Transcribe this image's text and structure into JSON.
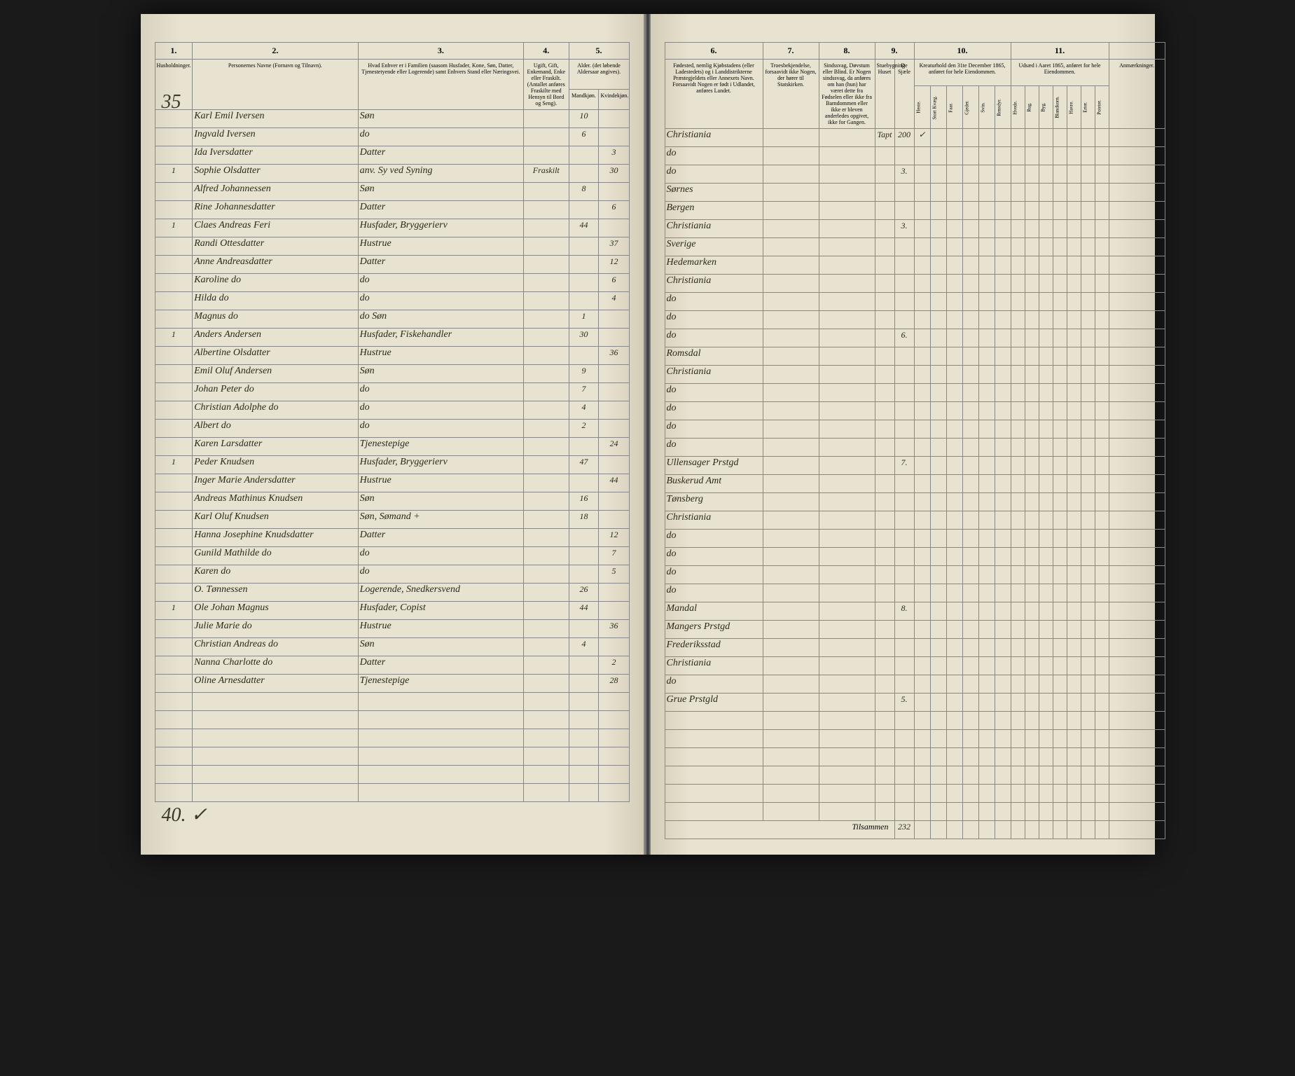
{
  "page_number_top": "35",
  "page_number_bottom": "40.",
  "checkmark": "✓",
  "tilsammen_label": "Tilsammen",
  "tilsammen_value": "232",
  "left_headers": {
    "col1_num": "1.",
    "col2_num": "2.",
    "col3_num": "3.",
    "col4_num": "4.",
    "col5_num": "5.",
    "col1": "Husholdninger.",
    "col2": "Personernes Navne (Fornavn og Tilnavn).",
    "col3": "Hvad Enhver er i Familien (saasom Husfader, Kone, Søn, Datter, Tjenestetyende eller Logerende) samt Enhvers Stand eller Næringsvei.",
    "col4": "Ugift, Gift, Enkemand, Enke eller Fraskilt. (Antallet anføres Fraskilte med Hensyn til Bord og Seng).",
    "col5": "Alder. (det løbende Aldersaar angives).",
    "col5a": "Mandkjøn.",
    "col5b": "Kvindekjøn."
  },
  "right_headers": {
    "col6_num": "6.",
    "col7_num": "7.",
    "col8_num": "8.",
    "col9_num": "9.",
    "col10_num": "10.",
    "col11_num": "11.",
    "col6": "Fødested, nemlig Kjøbstadens (eller Ladestedets) og i Landdistrikterne Præstegjeldets eller Annexets Navn. Forsaavidt Nogen er født i Udlandet, anføres Landet.",
    "col7": "Troesbekjendelse, forsaavidt ikke Nogen, der hører til Statskirken.",
    "col8": "Sindssvag, Døvstum eller Blind. Er Nogen sindssvag, da anføres om han (hun) har været dette fra Fødselen eller ikke fra Barndommen eller ikke er bleven anderledes opgivet, ikke for Gangen.",
    "col9a": "Stuebygning Huset",
    "col9b": "De Sjæle",
    "col10": "Kreaturhold den 31te December 1865, anføret for hele Eiendommen.",
    "col10_sub": [
      "Heste.",
      "Stort Kvæg.",
      "Faar.",
      "Gjeder.",
      "Svin.",
      "Rensdyr."
    ],
    "col11": "Udsæd i Aaret 1865, anføret for hele Eiendommen.",
    "col11_sub": [
      "Hvede.",
      "Rug.",
      "Byg.",
      "Blandkorn.",
      "Havre.",
      "Erter.",
      "Poteter."
    ],
    "col12": "Anmærkninger."
  },
  "rows": [
    {
      "hh": "",
      "name": "Karl Emil Iversen",
      "rel": "Søn",
      "status": "",
      "m": "10",
      "f": "",
      "birthplace": "Christiania",
      "faith": "",
      "cond": "",
      "c9a": "Tapt",
      "c9b": "200",
      "c10": [
        "✓",
        "",
        "",
        "",
        "",
        ""
      ],
      "c11": [
        "",
        "",
        "",
        "",
        "",
        "",
        ""
      ]
    },
    {
      "hh": "",
      "name": "Ingvald Iversen",
      "rel": "do",
      "status": "",
      "m": "6",
      "f": "",
      "birthplace": "do",
      "faith": "",
      "cond": "",
      "c9a": "",
      "c9b": "",
      "c10": [
        "",
        "",
        "",
        "",
        "",
        ""
      ],
      "c11": [
        "",
        "",
        "",
        "",
        "",
        "",
        ""
      ]
    },
    {
      "hh": "",
      "name": "Ida Iversdatter",
      "rel": "Datter",
      "status": "",
      "m": "",
      "f": "3",
      "birthplace": "do",
      "faith": "",
      "cond": "",
      "c9a": "",
      "c9b": "3.",
      "c10": [
        "",
        "",
        "",
        "",
        "",
        ""
      ],
      "c11": [
        "",
        "",
        "",
        "",
        "",
        "",
        ""
      ]
    },
    {
      "hh": "1",
      "name": "Sophie Olsdatter",
      "rel": "anv. Sy ved Syning",
      "status": "Fraskilt",
      "m": "",
      "f": "30",
      "birthplace": "Sørnes",
      "faith": "",
      "cond": "",
      "c9a": "",
      "c9b": "",
      "c10": [
        "",
        "",
        "",
        "",
        "",
        ""
      ],
      "c11": [
        "",
        "",
        "",
        "",
        "",
        "",
        ""
      ]
    },
    {
      "hh": "",
      "name": "Alfred Johannessen",
      "rel": "Søn",
      "status": "",
      "m": "8",
      "f": "",
      "birthplace": "Bergen",
      "faith": "",
      "cond": "",
      "c9a": "",
      "c9b": "",
      "c10": [
        "",
        "",
        "",
        "",
        "",
        ""
      ],
      "c11": [
        "",
        "",
        "",
        "",
        "",
        "",
        ""
      ]
    },
    {
      "hh": "",
      "name": "Rine Johannesdatter",
      "rel": "Datter",
      "status": "",
      "m": "",
      "f": "6",
      "birthplace": "Christiania",
      "faith": "",
      "cond": "",
      "c9a": "",
      "c9b": "3.",
      "c10": [
        "",
        "",
        "",
        "",
        "",
        ""
      ],
      "c11": [
        "",
        "",
        "",
        "",
        "",
        "",
        ""
      ]
    },
    {
      "hh": "1",
      "name": "Claes Andreas Feri",
      "rel": "Husfader, Bryggerierv",
      "status": "",
      "m": "44",
      "f": "",
      "birthplace": "Sverige",
      "faith": "",
      "cond": "",
      "c9a": "",
      "c9b": "",
      "c10": [
        "",
        "",
        "",
        "",
        "",
        ""
      ],
      "c11": [
        "",
        "",
        "",
        "",
        "",
        "",
        ""
      ]
    },
    {
      "hh": "",
      "name": "Randi Ottesdatter",
      "rel": "Hustrue",
      "status": "",
      "m": "",
      "f": "37",
      "birthplace": "Hedemarken",
      "faith": "",
      "cond": "",
      "c9a": "",
      "c9b": "",
      "c10": [
        "",
        "",
        "",
        "",
        "",
        ""
      ],
      "c11": [
        "",
        "",
        "",
        "",
        "",
        "",
        ""
      ]
    },
    {
      "hh": "",
      "name": "Anne Andreasdatter",
      "rel": "Datter",
      "status": "",
      "m": "",
      "f": "12",
      "birthplace": "Christiania",
      "faith": "",
      "cond": "",
      "c9a": "",
      "c9b": "",
      "c10": [
        "",
        "",
        "",
        "",
        "",
        ""
      ],
      "c11": [
        "",
        "",
        "",
        "",
        "",
        "",
        ""
      ]
    },
    {
      "hh": "",
      "name": "Karoline   do",
      "rel": "do",
      "status": "",
      "m": "",
      "f": "6",
      "birthplace": "do",
      "faith": "",
      "cond": "",
      "c9a": "",
      "c9b": "",
      "c10": [
        "",
        "",
        "",
        "",
        "",
        ""
      ],
      "c11": [
        "",
        "",
        "",
        "",
        "",
        "",
        ""
      ]
    },
    {
      "hh": "",
      "name": "Hilda   do",
      "rel": "do",
      "status": "",
      "m": "",
      "f": "4",
      "birthplace": "do",
      "faith": "",
      "cond": "",
      "c9a": "",
      "c9b": "",
      "c10": [
        "",
        "",
        "",
        "",
        "",
        ""
      ],
      "c11": [
        "",
        "",
        "",
        "",
        "",
        "",
        ""
      ]
    },
    {
      "hh": "",
      "name": "Magnus   do",
      "rel": "do  Søn",
      "status": "",
      "m": "1",
      "f": "",
      "birthplace": "do",
      "faith": "",
      "cond": "",
      "c9a": "",
      "c9b": "6.",
      "c10": [
        "",
        "",
        "",
        "",
        "",
        ""
      ],
      "c11": [
        "",
        "",
        "",
        "",
        "",
        "",
        ""
      ]
    },
    {
      "hh": "1",
      "name": "Anders Andersen",
      "rel": "Husfader, Fiskehandler",
      "status": "",
      "m": "30",
      "f": "",
      "birthplace": "Romsdal",
      "faith": "",
      "cond": "",
      "c9a": "",
      "c9b": "",
      "c10": [
        "",
        "",
        "",
        "",
        "",
        ""
      ],
      "c11": [
        "",
        "",
        "",
        "",
        "",
        "",
        ""
      ]
    },
    {
      "hh": "",
      "name": "Albertine Olsdatter",
      "rel": "Hustrue",
      "status": "",
      "m": "",
      "f": "36",
      "birthplace": "Christiania",
      "faith": "",
      "cond": "",
      "c9a": "",
      "c9b": "",
      "c10": [
        "",
        "",
        "",
        "",
        "",
        ""
      ],
      "c11": [
        "",
        "",
        "",
        "",
        "",
        "",
        ""
      ]
    },
    {
      "hh": "",
      "name": "Emil Oluf Andersen",
      "rel": "Søn",
      "status": "",
      "m": "9",
      "f": "",
      "birthplace": "do",
      "faith": "",
      "cond": "",
      "c9a": "",
      "c9b": "",
      "c10": [
        "",
        "",
        "",
        "",
        "",
        ""
      ],
      "c11": [
        "",
        "",
        "",
        "",
        "",
        "",
        ""
      ]
    },
    {
      "hh": "",
      "name": "Johan Peter   do",
      "rel": "do",
      "status": "",
      "m": "7",
      "f": "",
      "birthplace": "do",
      "faith": "",
      "cond": "",
      "c9a": "",
      "c9b": "",
      "c10": [
        "",
        "",
        "",
        "",
        "",
        ""
      ],
      "c11": [
        "",
        "",
        "",
        "",
        "",
        "",
        ""
      ]
    },
    {
      "hh": "",
      "name": "Christian Adolphe do",
      "rel": "do",
      "status": "",
      "m": "4",
      "f": "",
      "birthplace": "do",
      "faith": "",
      "cond": "",
      "c9a": "",
      "c9b": "",
      "c10": [
        "",
        "",
        "",
        "",
        "",
        ""
      ],
      "c11": [
        "",
        "",
        "",
        "",
        "",
        "",
        ""
      ]
    },
    {
      "hh": "",
      "name": "Albert   do",
      "rel": "do",
      "status": "",
      "m": "2",
      "f": "",
      "birthplace": "do",
      "faith": "",
      "cond": "",
      "c9a": "",
      "c9b": "",
      "c10": [
        "",
        "",
        "",
        "",
        "",
        ""
      ],
      "c11": [
        "",
        "",
        "",
        "",
        "",
        "",
        ""
      ]
    },
    {
      "hh": "",
      "name": "Karen Larsdatter",
      "rel": "Tjenestepige",
      "status": "",
      "m": "",
      "f": "24",
      "birthplace": "Ullensager Prstgd",
      "faith": "",
      "cond": "",
      "c9a": "",
      "c9b": "7.",
      "c10": [
        "",
        "",
        "",
        "",
        "",
        ""
      ],
      "c11": [
        "",
        "",
        "",
        "",
        "",
        "",
        ""
      ]
    },
    {
      "hh": "1",
      "name": "Peder Knudsen",
      "rel": "Husfader, Bryggerierv",
      "status": "",
      "m": "47",
      "f": "",
      "birthplace": "Buskerud Amt",
      "faith": "",
      "cond": "",
      "c9a": "",
      "c9b": "",
      "c10": [
        "",
        "",
        "",
        "",
        "",
        ""
      ],
      "c11": [
        "",
        "",
        "",
        "",
        "",
        "",
        ""
      ]
    },
    {
      "hh": "",
      "name": "Inger Marie Andersdatter",
      "rel": "Hustrue",
      "status": "",
      "m": "",
      "f": "44",
      "birthplace": "Tønsberg",
      "faith": "",
      "cond": "",
      "c9a": "",
      "c9b": "",
      "c10": [
        "",
        "",
        "",
        "",
        "",
        ""
      ],
      "c11": [
        "",
        "",
        "",
        "",
        "",
        "",
        ""
      ]
    },
    {
      "hh": "",
      "name": "Andreas Mathinus Knudsen",
      "rel": "Søn",
      "status": "",
      "m": "16",
      "f": "",
      "birthplace": "Christiania",
      "faith": "",
      "cond": "",
      "c9a": "",
      "c9b": "",
      "c10": [
        "",
        "",
        "",
        "",
        "",
        ""
      ],
      "c11": [
        "",
        "",
        "",
        "",
        "",
        "",
        ""
      ]
    },
    {
      "hh": "",
      "name": "Karl Oluf Knudsen",
      "rel": "Søn, Sømand +",
      "status": "",
      "m": "18",
      "f": "",
      "birthplace": "do",
      "faith": "",
      "cond": "",
      "c9a": "",
      "c9b": "",
      "c10": [
        "",
        "",
        "",
        "",
        "",
        ""
      ],
      "c11": [
        "",
        "",
        "",
        "",
        "",
        "",
        ""
      ]
    },
    {
      "hh": "",
      "name": "Hanna Josephine Knudsdatter",
      "rel": "Datter",
      "status": "",
      "m": "",
      "f": "12",
      "birthplace": "do",
      "faith": "",
      "cond": "",
      "c9a": "",
      "c9b": "",
      "c10": [
        "",
        "",
        "",
        "",
        "",
        ""
      ],
      "c11": [
        "",
        "",
        "",
        "",
        "",
        "",
        ""
      ]
    },
    {
      "hh": "",
      "name": "Gunild Mathilde   do",
      "rel": "do",
      "status": "",
      "m": "",
      "f": "7",
      "birthplace": "do",
      "faith": "",
      "cond": "",
      "c9a": "",
      "c9b": "",
      "c10": [
        "",
        "",
        "",
        "",
        "",
        ""
      ],
      "c11": [
        "",
        "",
        "",
        "",
        "",
        "",
        ""
      ]
    },
    {
      "hh": "",
      "name": "Karen   do",
      "rel": "do",
      "status": "",
      "m": "",
      "f": "5",
      "birthplace": "do",
      "faith": "",
      "cond": "",
      "c9a": "",
      "c9b": "",
      "c10": [
        "",
        "",
        "",
        "",
        "",
        ""
      ],
      "c11": [
        "",
        "",
        "",
        "",
        "",
        "",
        ""
      ]
    },
    {
      "hh": "",
      "name": "O. Tønnessen",
      "rel": "Logerende, Snedkersvend",
      "status": "",
      "m": "26",
      "f": "",
      "birthplace": "Mandal",
      "faith": "",
      "cond": "",
      "c9a": "",
      "c9b": "8.",
      "c10": [
        "",
        "",
        "",
        "",
        "",
        ""
      ],
      "c11": [
        "",
        "",
        "",
        "",
        "",
        "",
        ""
      ]
    },
    {
      "hh": "1",
      "name": "Ole Johan Magnus",
      "rel": "Husfader, Copist",
      "status": "",
      "m": "44",
      "f": "",
      "birthplace": "Mangers Prstgd",
      "faith": "",
      "cond": "",
      "c9a": "",
      "c9b": "",
      "c10": [
        "",
        "",
        "",
        "",
        "",
        ""
      ],
      "c11": [
        "",
        "",
        "",
        "",
        "",
        "",
        ""
      ]
    },
    {
      "hh": "",
      "name": "Julie Marie   do",
      "rel": "Hustrue",
      "status": "",
      "m": "",
      "f": "36",
      "birthplace": "Frederiksstad",
      "faith": "",
      "cond": "",
      "c9a": "",
      "c9b": "",
      "c10": [
        "",
        "",
        "",
        "",
        "",
        ""
      ],
      "c11": [
        "",
        "",
        "",
        "",
        "",
        "",
        ""
      ]
    },
    {
      "hh": "",
      "name": "Christian Andreas do",
      "rel": "Søn",
      "status": "",
      "m": "4",
      "f": "",
      "birthplace": "Christiania",
      "faith": "",
      "cond": "",
      "c9a": "",
      "c9b": "",
      "c10": [
        "",
        "",
        "",
        "",
        "",
        ""
      ],
      "c11": [
        "",
        "",
        "",
        "",
        "",
        "",
        ""
      ]
    },
    {
      "hh": "",
      "name": "Nanna Charlotte   do",
      "rel": "Datter",
      "status": "",
      "m": "",
      "f": "2",
      "birthplace": "do",
      "faith": "",
      "cond": "",
      "c9a": "",
      "c9b": "",
      "c10": [
        "",
        "",
        "",
        "",
        "",
        ""
      ],
      "c11": [
        "",
        "",
        "",
        "",
        "",
        "",
        ""
      ]
    },
    {
      "hh": "",
      "name": "Oline Arnesdatter",
      "rel": "Tjenestepige",
      "status": "",
      "m": "",
      "f": "28",
      "birthplace": "Grue Prstgld",
      "faith": "",
      "cond": "",
      "c9a": "",
      "c9b": "5.",
      "c10": [
        "",
        "",
        "",
        "",
        "",
        ""
      ],
      "c11": [
        "",
        "",
        "",
        "",
        "",
        "",
        ""
      ]
    }
  ]
}
